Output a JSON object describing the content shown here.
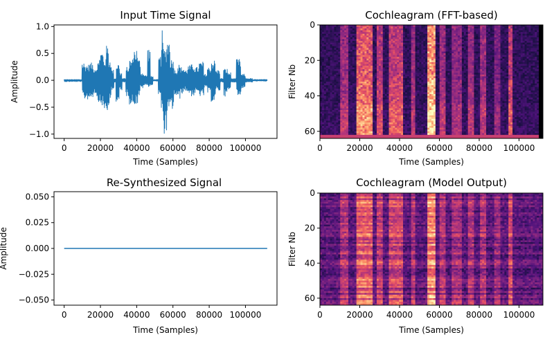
{
  "chart_data": [
    {
      "type": "line",
      "title": "Input Time Signal",
      "xlabel": "Time (Samples)",
      "ylabel": "Amplitude",
      "xlim": [
        -5600,
        117400
      ],
      "ylim": [
        -1.08,
        1.03
      ],
      "xticks": [
        0,
        20000,
        40000,
        60000,
        80000,
        100000
      ],
      "xtick_labels": [
        "0",
        "20000",
        "40000",
        "60000",
        "80000",
        "100000"
      ],
      "yticks": [
        -1.0,
        -0.5,
        0.0,
        0.5,
        1.0
      ],
      "ytick_labels": [
        "−1.0",
        "−0.5",
        "0.0",
        "0.5",
        "1.0"
      ],
      "series_color": "#1f77b4",
      "n_samples": 112000,
      "envelope_segments": [
        [
          0,
          9800,
          0.02,
          0.03
        ],
        [
          9800,
          11000,
          0.34,
          0.34
        ],
        [
          11000,
          14000,
          0.3,
          0.36
        ],
        [
          14000,
          16000,
          0.33,
          0.33
        ],
        [
          16000,
          18000,
          0.25,
          0.25
        ],
        [
          18000,
          19500,
          0.35,
          0.4
        ],
        [
          19500,
          21500,
          0.55,
          0.48
        ],
        [
          21500,
          23000,
          0.4,
          0.6
        ],
        [
          23000,
          24500,
          0.65,
          0.6
        ],
        [
          24500,
          26000,
          0.4,
          0.45
        ],
        [
          26000,
          27500,
          0.2,
          0.2
        ],
        [
          27500,
          28500,
          0.04,
          0.04
        ],
        [
          28500,
          30500,
          0.32,
          0.4
        ],
        [
          30500,
          32000,
          0.15,
          0.22
        ],
        [
          32000,
          34000,
          0.04,
          0.04
        ],
        [
          34000,
          36000,
          0.25,
          0.3
        ],
        [
          36000,
          38000,
          0.4,
          0.45
        ],
        [
          38000,
          40500,
          0.6,
          0.45
        ],
        [
          40500,
          42000,
          0.4,
          0.3
        ],
        [
          42000,
          44000,
          0.15,
          0.15
        ],
        [
          44000,
          46000,
          0.1,
          0.1
        ],
        [
          46000,
          47500,
          0.62,
          0.12
        ],
        [
          47500,
          49000,
          0.08,
          0.1
        ],
        [
          49000,
          52000,
          0.02,
          0.02
        ],
        [
          52000,
          53500,
          0.45,
          0.3
        ],
        [
          53500,
          54500,
          0.93,
          0.6
        ],
        [
          54500,
          56500,
          0.6,
          1.0
        ],
        [
          56500,
          58500,
          0.78,
          0.6
        ],
        [
          58500,
          60500,
          0.4,
          0.55
        ],
        [
          60500,
          62500,
          0.2,
          0.3
        ],
        [
          62500,
          64000,
          0.3,
          0.35
        ],
        [
          64000,
          66000,
          0.25,
          0.25
        ],
        [
          66000,
          68000,
          0.2,
          0.2
        ],
        [
          68000,
          70000,
          0.28,
          0.25
        ],
        [
          70000,
          72000,
          0.3,
          0.3
        ],
        [
          72000,
          74500,
          0.25,
          0.25
        ],
        [
          74500,
          77000,
          0.35,
          0.3
        ],
        [
          77000,
          79000,
          0.12,
          0.15
        ],
        [
          79000,
          81000,
          0.25,
          0.25
        ],
        [
          81000,
          83500,
          0.38,
          0.4
        ],
        [
          83500,
          86000,
          0.2,
          0.2
        ],
        [
          86000,
          88000,
          0.04,
          0.04
        ],
        [
          88000,
          90000,
          0.22,
          0.3
        ],
        [
          90000,
          92000,
          0.15,
          0.2
        ],
        [
          92000,
          95000,
          0.04,
          0.04
        ],
        [
          95000,
          97500,
          0.4,
          0.3
        ],
        [
          97500,
          100000,
          0.12,
          0.15
        ],
        [
          100000,
          104000,
          0.04,
          0.04
        ],
        [
          104000,
          112000,
          0.02,
          0.02
        ]
      ]
    },
    {
      "type": "heatmap",
      "title": "Cochleagram (FFT-based)",
      "xlabel": "Time (Samples)",
      "ylabel": "Filter Nb",
      "xlim": [
        0,
        112000
      ],
      "ylim": [
        64,
        0
      ],
      "xticks": [
        0,
        20000,
        40000,
        60000,
        80000,
        100000
      ],
      "xtick_labels": [
        "0",
        "20000",
        "40000",
        "60000",
        "80000",
        "100000"
      ],
      "yticks": [
        0,
        20,
        40,
        60
      ],
      "ytick_labels": [
        "0",
        "20",
        "40",
        "60"
      ],
      "colormap": "magma",
      "n_filters": 64,
      "n_time_bins": 110
    },
    {
      "type": "line",
      "title": "Re-Synthesized Signal",
      "xlabel": "Time (Samples)",
      "ylabel": "Amplitude",
      "xlim": [
        -5600,
        117400
      ],
      "ylim": [
        -0.055,
        0.055
      ],
      "xticks": [
        0,
        20000,
        40000,
        60000,
        80000,
        100000
      ],
      "xtick_labels": [
        "0",
        "20000",
        "40000",
        "60000",
        "80000",
        "100000"
      ],
      "yticks": [
        -0.05,
        -0.025,
        0.0,
        0.025,
        0.05
      ],
      "ytick_labels": [
        "−0.050",
        "−0.025",
        "0.000",
        "0.025",
        "0.050"
      ],
      "series_color": "#1f77b4",
      "x": [
        0,
        112000
      ],
      "y": [
        0,
        0
      ]
    },
    {
      "type": "heatmap",
      "title": "Cochleagram (Model Output)",
      "xlabel": "Time (Samples)",
      "ylabel": "Filter Nb",
      "xlim": [
        0,
        112000
      ],
      "ylim": [
        64,
        0
      ],
      "xticks": [
        0,
        20000,
        40000,
        60000,
        80000,
        100000
      ],
      "xtick_labels": [
        "0",
        "20000",
        "40000",
        "60000",
        "80000",
        "100000"
      ],
      "yticks": [
        0,
        20,
        40,
        60
      ],
      "ytick_labels": [
        "0",
        "20",
        "40",
        "60"
      ],
      "colormap": "magma",
      "n_filters": 64,
      "n_time_bins": 110
    }
  ]
}
